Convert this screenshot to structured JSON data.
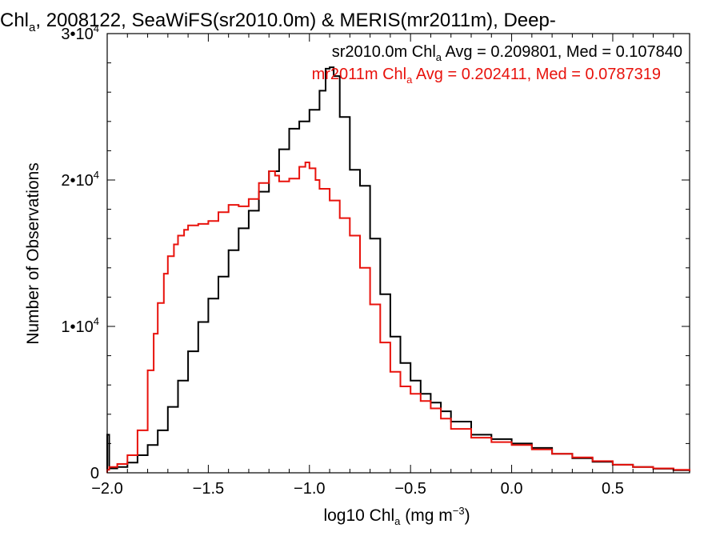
{
  "chart_data": {
    "type": "line",
    "title_parts": [
      "Chl",
      "a",
      ", 2008122, SeaWiFS(sr2010.0m) & MERIS(mr2011m), Deep-"
    ],
    "xlabel_parts": [
      "log10 Chl",
      "a",
      " (mg m",
      "−3",
      ")"
    ],
    "ylabel": "Number of Observations",
    "xlim": [
      -2.0,
      0.88
    ],
    "ylim": [
      0,
      30000
    ],
    "x_ticks": [
      -2.0,
      -1.5,
      -1.0,
      -0.5,
      0.0,
      0.5
    ],
    "x_tick_labels": [
      "−2.0",
      "−1.5",
      "−1.0",
      "−0.5",
      "0.0",
      "0.5"
    ],
    "y_ticks": [
      0,
      10000,
      20000,
      30000
    ],
    "y_tick_labels": [
      {
        "base": "0",
        "exp": ""
      },
      {
        "base": "1•10",
        "exp": "4"
      },
      {
        "base": "2•10",
        "exp": "4"
      },
      {
        "base": "3•10",
        "exp": "4"
      }
    ],
    "legend_position": "top-right",
    "series": [
      {
        "label_parts": [
          "sr2010.0m Chl",
          "a",
          " Avg = 0.209801, Med = 0.107840"
        ],
        "color": "#000000",
        "style": "step",
        "x": [
          -2.0,
          -1.99,
          -1.95,
          -1.9,
          -1.85,
          -1.8,
          -1.75,
          -1.7,
          -1.65,
          -1.6,
          -1.55,
          -1.5,
          -1.45,
          -1.4,
          -1.35,
          -1.3,
          -1.25,
          -1.2,
          -1.15,
          -1.1,
          -1.05,
          -1.0,
          -0.95,
          -0.92,
          -0.9,
          -0.88,
          -0.85,
          -0.8,
          -0.75,
          -0.7,
          -0.65,
          -0.6,
          -0.55,
          -0.5,
          -0.45,
          -0.4,
          -0.35,
          -0.3,
          -0.2,
          -0.1,
          0.0,
          0.1,
          0.2,
          0.3,
          0.4,
          0.5,
          0.6,
          0.7,
          0.8,
          0.88
        ],
        "y": [
          2600,
          300,
          400,
          700,
          1200,
          1900,
          2900,
          4500,
          6300,
          8300,
          10300,
          11900,
          13400,
          15200,
          16700,
          17900,
          19200,
          20600,
          22100,
          23500,
          24000,
          24800,
          26100,
          27600,
          27700,
          27100,
          24300,
          20700,
          19600,
          16000,
          12200,
          9300,
          7500,
          6300,
          5400,
          4800,
          4200,
          3500,
          2600,
          2300,
          2000,
          1700,
          1300,
          1000,
          750,
          550,
          400,
          280,
          180,
          100
        ]
      },
      {
        "label_parts": [
          "mr2011m Chl",
          "a",
          " Avg = 0.202411, Med = 0.0787319"
        ],
        "color": "#e8120c",
        "style": "step",
        "x": [
          -2.0,
          -1.99,
          -1.95,
          -1.9,
          -1.85,
          -1.8,
          -1.77,
          -1.75,
          -1.72,
          -1.7,
          -1.67,
          -1.65,
          -1.62,
          -1.6,
          -1.55,
          -1.5,
          -1.45,
          -1.4,
          -1.35,
          -1.3,
          -1.25,
          -1.2,
          -1.17,
          -1.15,
          -1.1,
          -1.05,
          -1.02,
          -1.0,
          -0.97,
          -0.95,
          -0.9,
          -0.85,
          -0.8,
          -0.75,
          -0.7,
          -0.65,
          -0.6,
          -0.55,
          -0.5,
          -0.45,
          -0.4,
          -0.35,
          -0.3,
          -0.2,
          -0.1,
          0.0,
          0.1,
          0.2,
          0.3,
          0.4,
          0.5,
          0.6,
          0.7,
          0.8,
          0.88
        ],
        "y": [
          200,
          400,
          600,
          1200,
          2900,
          7000,
          9500,
          11600,
          13600,
          14800,
          15600,
          16200,
          16600,
          16900,
          17000,
          17200,
          17800,
          18300,
          18200,
          18700,
          19800,
          20600,
          20300,
          19900,
          20100,
          20900,
          21200,
          20800,
          20000,
          19400,
          18600,
          17400,
          16200,
          14000,
          11500,
          8900,
          6900,
          5900,
          5400,
          4900,
          4400,
          3700,
          3000,
          2400,
          2100,
          1900,
          1600,
          1300,
          1050,
          800,
          550,
          400,
          300,
          200,
          120
        ]
      }
    ]
  }
}
